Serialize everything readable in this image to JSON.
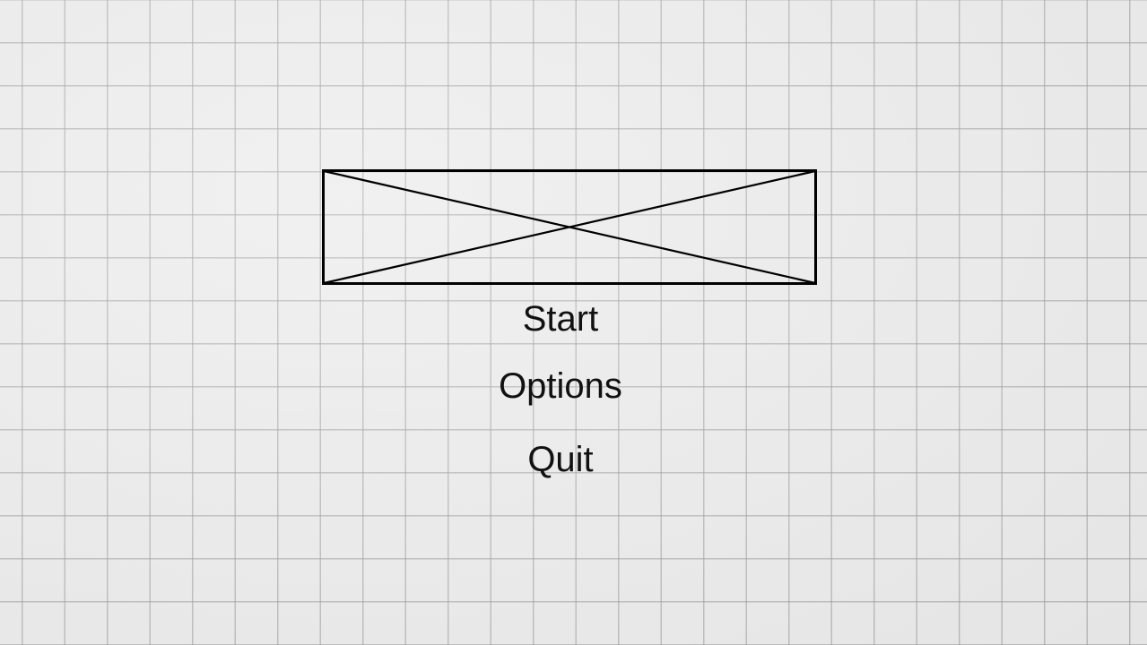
{
  "menu": {
    "start_label": "Start",
    "options_label": "Options",
    "quit_label": "Quit"
  },
  "colors": {
    "background": "#ececec",
    "grid_line": "#969696",
    "text": "#111111",
    "placeholder_stroke": "#000000"
  },
  "logo": {
    "icon": "image-placeholder-icon"
  }
}
